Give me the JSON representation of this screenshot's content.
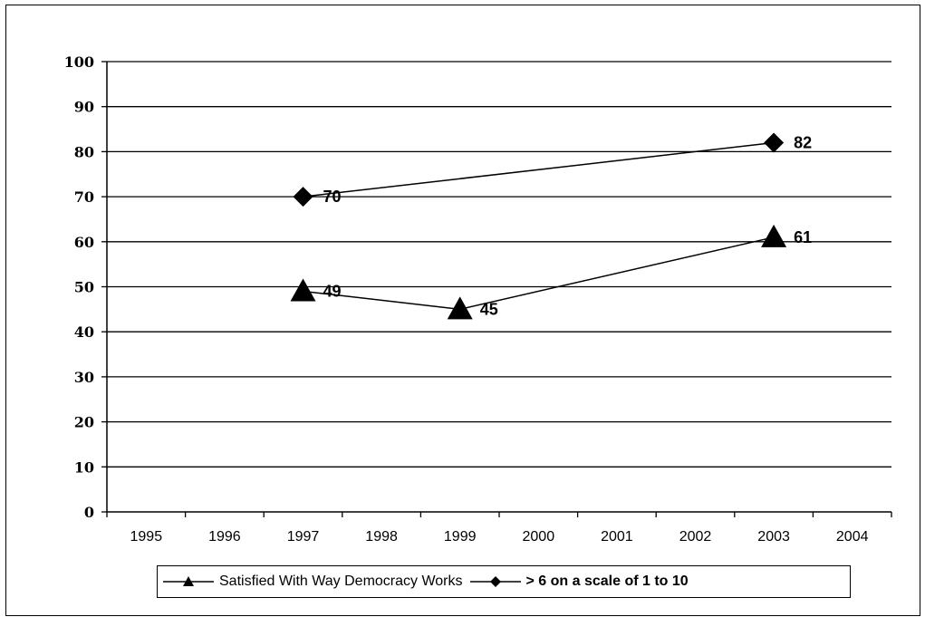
{
  "chart_data": {
    "type": "line",
    "x": [
      1995,
      1996,
      1997,
      1998,
      1999,
      2000,
      2001,
      2002,
      2003,
      2004
    ],
    "categories": [
      "1995",
      "1996",
      "1997",
      "1998",
      "1999",
      "2000",
      "2001",
      "2002",
      "2003",
      "2004"
    ],
    "ylim": [
      0,
      100
    ],
    "yticks": [
      "0",
      "10",
      "20",
      "30",
      "40",
      "50",
      "60",
      "70",
      "80",
      "90",
      "100"
    ],
    "grid": true,
    "legend_position": "bottom",
    "series": [
      {
        "name": "Satisfied With Way Democracy Works",
        "marker": "triangle",
        "points": [
          {
            "x": 1997,
            "y": 49,
            "label": "49"
          },
          {
            "x": 1999,
            "y": 45,
            "label": "45"
          },
          {
            "x": 2003,
            "y": 61,
            "label": "61"
          }
        ]
      },
      {
        "name": "> 6 on a scale of 1 to 10",
        "marker": "diamond",
        "points": [
          {
            "x": 1997,
            "y": 70,
            "label": "70"
          },
          {
            "x": 2003,
            "y": 82,
            "label": "82"
          }
        ]
      }
    ]
  },
  "legend": {
    "series1_label": "Satisfied With Way Democracy Works",
    "series2_label": "> 6 on a scale of 1 to 10"
  }
}
